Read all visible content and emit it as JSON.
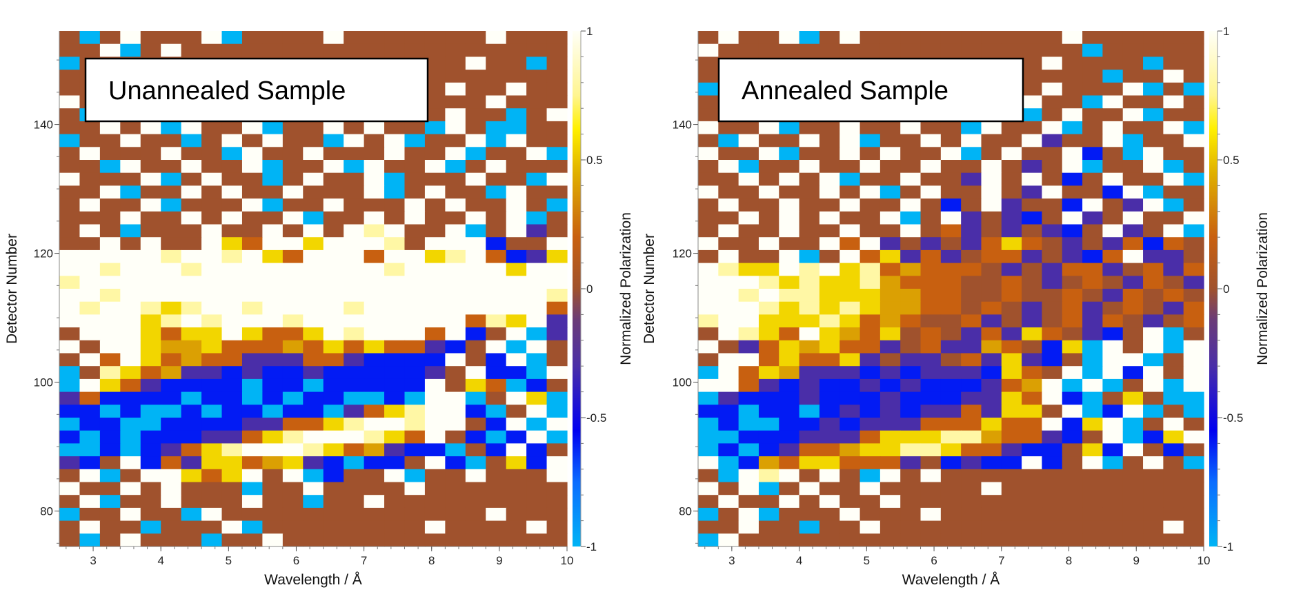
{
  "colormap": {
    "range": [
      -1,
      1
    ],
    "stops": [
      {
        "v": -1.0,
        "color": "#00b4f5"
      },
      {
        "v": -0.75,
        "color": "#0a6cff"
      },
      {
        "v": -0.55,
        "color": "#0000f0"
      },
      {
        "v": -0.3,
        "color": "#4a2ea8"
      },
      {
        "v": -0.12,
        "color": "#6b3c78"
      },
      {
        "v": 0.0,
        "color": "#a0522d"
      },
      {
        "v": 0.2,
        "color": "#c86010"
      },
      {
        "v": 0.45,
        "color": "#e0b000"
      },
      {
        "v": 0.62,
        "color": "#fff000"
      },
      {
        "v": 0.75,
        "color": "#fff590"
      },
      {
        "v": 1.0,
        "color": "#fffff8"
      }
    ]
  },
  "cell_codes": {
    "c": -1,
    "b": -0.6,
    "p": -0.3,
    "n": 0,
    "o": 0.2,
    "g": 0.4,
    "y": 0.55,
    "l": 0.8,
    "w": 1
  },
  "chart_data": [
    {
      "type": "heatmap",
      "title": "Unannealed Sample",
      "xlabel": "Wavelength / Å",
      "ylabel": "Detector Number",
      "colorbar_label": "Normalized Polarization",
      "xlim": [
        2.5,
        10
      ],
      "ylim": [
        74.5,
        154.5
      ],
      "xticks": [
        "3",
        "4",
        "5",
        "6",
        "7",
        "8",
        "9",
        "10"
      ],
      "yticks": [
        "80",
        "100",
        "120",
        "140"
      ],
      "colorbar_ticks": [
        "1",
        "0.5",
        "0",
        "-0.5",
        "-1"
      ],
      "grid": false,
      "cell_width": 0.3,
      "cell_height": 2,
      "rows_top_to_bottom": [
        "ncnwnnnwcnnnnwnnnnnnnwnnn",
        "nnwcnwnnnnnnnnnnnnnnnnnnn",
        "cnnnnnnnnnnnnnnnnnnnwnncn",
        "nnnnnnnnnnnnnnnnwnnnnnnnn",
        "nnnnnnnnnnnnnnnnnwnwnnwnn",
        "wnnnnnnnnnnnnnnncnnnnwnnn",
        "ncwcwnwcnnwnwcnnwnnwnncnw",
        "nnwnwcwnnwcnnwnwnncwnccnn",
        "cnnwnncnwnwnncwnwcnnwcwnn",
        "nwnnnwnncwnnwnnnwnnwcnnwc",
        "nncwnnwnnwcnnwcwnnwcnwnnn",
        "wnnnwcnwnncnwnnwcnnnwnncw",
        "nnwcnnwnwnnwnnnwcnwnncwnn",
        "nwnnwcnnnwcnnwnnnwnwnnwnc",
        "nnnwnnwnwnnwcnnwnwnnwnwcn",
        "nwncnnnwnnwnwnwlwnnwcnwpn",
        "nnwnwnnwyowwywwwlnwwwbnnw",
        "wwwwwlwwlwyowwwowwylwobpy",
        "wwlwwwlwwwwwwwwwlwwwwwyww",
        "lwwwwwwwwwwwwwwwwwwwwwwww",
        "wwlwwwwwwwwwwwwwwwwwwwwwl",
        "wlwwlylwwlwwwwlwwwwwwwwwo",
        "wwwwylwlwwwlwwwwwwwwolywp",
        "nwwwyoyywyooywlwwwowbnwcp",
        "wnwwyggyooogoyoyoopbnwcwn",
        "nwowyogoopppoopbbbbwnbwcn",
        "cnlyogppbpbbpbbbbbpnwbbcw",
        "cwyopbbbbcbbcbbbbbwnyocbn",
        "pobbbbcbbcbcbbccbcwwcnwyc",
        "bbcbccbcbbcbbcpoylwwbcnwc",
        "cbbccbbbbppooylwwlwwnbwcw",
        "bcbcbbbppoylwwwlyownbcbwc",
        "ccbcbpoylwwwlyogpbbcnbwbn",
        "pbnwbopyyogypbcbbnwbcnybw",
        "nwcnwwyoywnwcbnnwcnnwnnnw",
        "wnnwnwnnncnnwnnnnwnnnnnnn",
        "nwcnnwnnnwnncnnwnnnnnnnnn",
        "cnnwnncwnnnnnnnnnnnnnwnnn",
        "nwnncnnnwcnnnnnnnnwnnnnwn",
        "ncnwnnncnnwnnnnnnnnnnnnnn"
      ]
    },
    {
      "type": "heatmap",
      "title": "Annealed Sample",
      "xlabel": "Wavelength / Å",
      "ylabel": "Detector Number",
      "colorbar_label": "Normalized Polarization",
      "xlim": [
        2.5,
        10
      ],
      "ylim": [
        74.5,
        154.5
      ],
      "xticks": [
        "3",
        "4",
        "5",
        "6",
        "7",
        "8",
        "9",
        "10"
      ],
      "yticks": [
        "80",
        "100",
        "120",
        "140"
      ],
      "colorbar_ticks": [
        "1",
        "0.5",
        "0",
        "-0.5",
        "-1"
      ],
      "grid": false,
      "cell_width": 0.3,
      "cell_height": 2,
      "rows_top_to_bottom": [
        "nwnnwcnwnnnnnnnnnnwnnnnnn",
        "wnnnnnnnnnnnnnnnnnncnnnnn",
        "nnnnnnnnnnnnnnnnnwnnnncnn",
        "nnnnnnnnnnnnnnncnnnncnnwn",
        "cnnnnnnnnnnnnnnnnwnnnwcnc",
        "nwnnnnnnnnnnnnnnwnncwnnwn",
        "nncwnwcnnwcnwnnwcnwnnwcnn",
        "wnnwcnnwnnwnncwnnwcnwnnwc",
        "ncwnnwnwcnnwnwnnwpnnwcnnw",
        "wnnwcnnwnwnnwcnwnnwbncwnn",
        "nwcnnwnnwnnwnnwnpnwcnnwcn",
        "nnwnwnwcnnwnnpwnwnbnwnnwc",
        "wnnwnnwnwcnwnnwnpwnnbwcnn",
        "nwnnwnnwnnwnbnwpnnbwnpwcn",
        "nnwnwnwnnwcnwpnpbnwpnwnnw",
        "nwnnwnnwnnwnopnpnpbnwpnwc",
        "wnnwnnwowpnpnpoyonpnpobon",
        "nwnnwcnwoypopnoopnpbowppn",
        "wlyywlwylogooonpnpoopnopo",
        "wwwlylyylgooonnonpnonponp",
        "wwlwllyyyggoonnonnonponon",
        "wwwlylylyggoononpnopnonpo",
        "lwwyyylyogonnopnpnoponpno",
        "nwlyowygoynonpopyonpbnwcn",
        "wnpoygyoopnoppgonbycwnwcw",
        "nwwoyooypnppnopypbncwwcnw",
        "cwoygpppbpbpppbyonwcwbwnw",
        "wwopbpbbpbpbbbpogwcwcnwcw",
        "cpbbbpbbbpbbbppyowbcnyncc",
        "bbcbbcbpbpbppopyynwcbwcnc",
        "cbccbbpbpppoooyoowbywcnwn",
        "ccbbbpppoyyyllgoopbnwcbyw",
        "cbcbpoogyyllyoopbbnybwnbn",
        "wcbgoyyooopnbpbbwbnwcnwnc",
        "ncwlwnwncwnwnnnnnnnnnnnnn",
        "wnwcnwnnwnnnnnwnnnnnnnnnn",
        "nwnnwnwnnwnnnnnnnnnnnnnnn",
        "cnwcnnnwnnnwnnnnnnnnnnnnn",
        "nnwnncnnwnnnnnnnnnnnnnnwn",
        "cwnnnnnnnnnnnnnnnnnnnnnnn"
      ]
    }
  ]
}
